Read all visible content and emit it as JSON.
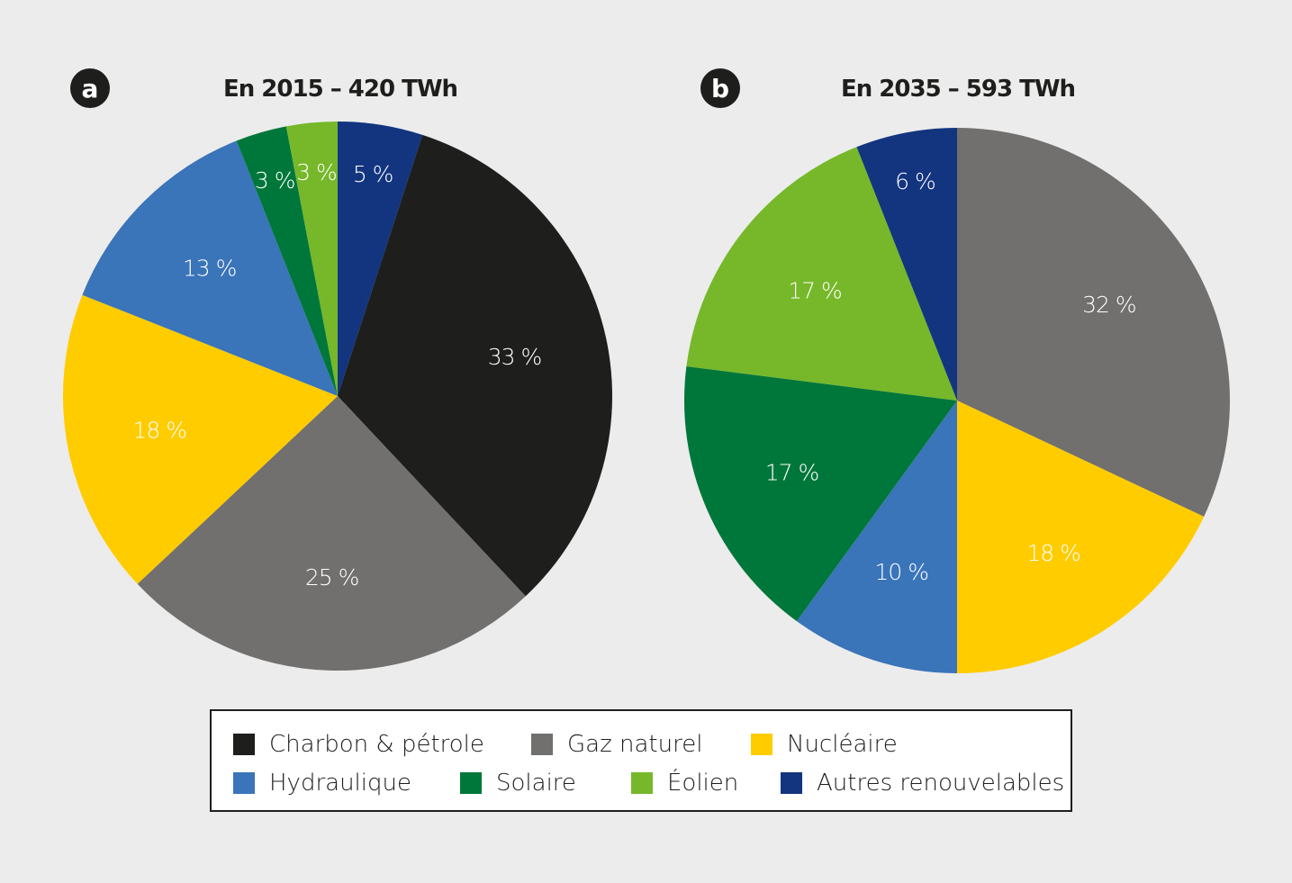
{
  "chart_data": [
    {
      "type": "pie",
      "badge": "a",
      "title": "En 2015 – 420 TWh",
      "slices": [
        {
          "label": "Autres renouvelables",
          "value": 5,
          "text": "5 %"
        },
        {
          "label": "Charbon & pétrole",
          "value": 33,
          "text": "33 %"
        },
        {
          "label": "Gaz naturel",
          "value": 25,
          "text": "25 %"
        },
        {
          "label": "Nucléaire",
          "value": 18,
          "text": "18 %"
        },
        {
          "label": "Hydraulique",
          "value": 13,
          "text": "13 %"
        },
        {
          "label": "Solaire",
          "value": 3,
          "text": "3 %"
        },
        {
          "label": "Éolien",
          "value": 3,
          "text": "3 %"
        }
      ]
    },
    {
      "type": "pie",
      "badge": "b",
      "title": "En 2035 – 593 TWh",
      "slices": [
        {
          "label": "Gaz naturel",
          "value": 32,
          "text": "32 %"
        },
        {
          "label": "Nucléaire",
          "value": 18,
          "text": "18 %"
        },
        {
          "label": "Hydraulique",
          "value": 10,
          "text": "10 %"
        },
        {
          "label": "Solaire",
          "value": 17,
          "text": "17 %"
        },
        {
          "label": "Éolien",
          "value": 17,
          "text": "17 %"
        },
        {
          "label": "Autres renouvelables",
          "value": 6,
          "text": "6 %"
        }
      ]
    }
  ],
  "legend": [
    {
      "label": "Charbon & pétrole",
      "color": "#1e1e1c"
    },
    {
      "label": "Gaz naturel",
      "color": "#71706e"
    },
    {
      "label": "Nucléaire",
      "color": "#ffcc00"
    },
    {
      "label": "Hydraulique",
      "color": "#3a74b9"
    },
    {
      "label": "Solaire",
      "color": "#00773a"
    },
    {
      "label": "Éolien",
      "color": "#76b82a"
    },
    {
      "label": "Autres renouvelables",
      "color": "#13357f"
    }
  ]
}
